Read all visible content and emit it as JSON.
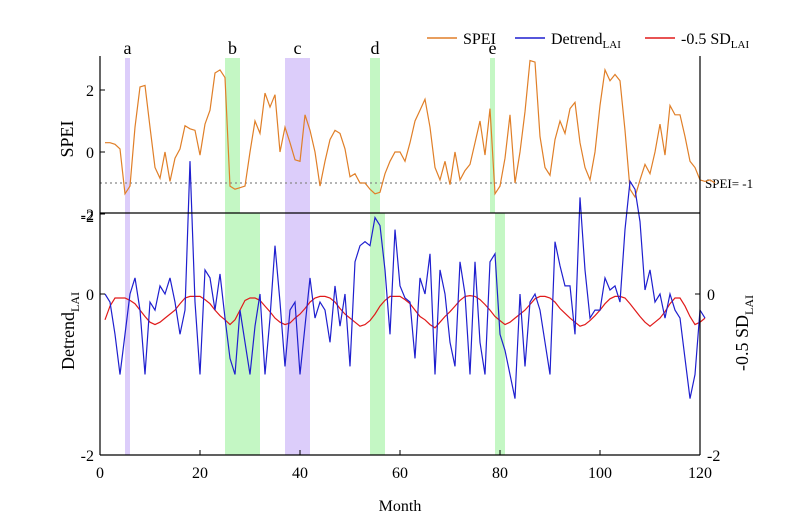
{
  "colors": {
    "spei": "#e07f28",
    "detrend": "#1f1fcf",
    "sd": "#e01a1a",
    "purple_band": "#dccdfa",
    "green_band": "#c4f7c4",
    "threshold": "#888888"
  },
  "legend": [
    {
      "key": "spei",
      "main": "SPEI",
      "sub": ""
    },
    {
      "key": "detrend",
      "main": "Detrend",
      "sub": "LAI"
    },
    {
      "key": "sd",
      "main": "-0.5 SD",
      "sub": "LAI"
    }
  ],
  "chart_data": {
    "type": "line",
    "xlabel": "Month",
    "x_range": [
      0,
      120
    ],
    "x_ticks": [
      0,
      20,
      40,
      60,
      80,
      100,
      120
    ],
    "top_panel": {
      "ylabel": "SPEI",
      "ylim": [
        -2,
        3
      ],
      "y_ticks": [
        -2,
        0,
        2
      ],
      "threshold": {
        "value": -1,
        "label": "SPEI= -1"
      },
      "events": [
        {
          "label": "a",
          "start": 5,
          "end": 6,
          "type": "purple"
        },
        {
          "label": "b",
          "start": 25,
          "end": 28,
          "type": "green"
        },
        {
          "label": "c",
          "start": 37,
          "end": 42,
          "type": "purple"
        },
        {
          "label": "d",
          "start": 54,
          "end": 56,
          "type": "green"
        },
        {
          "label": "e",
          "start": 78,
          "end": 79,
          "type": "green"
        }
      ],
      "series": [
        {
          "name": "SPEI",
          "key": "spei",
          "values": [
            0.3,
            0.3,
            0.25,
            0.1,
            -1.35,
            -1.1,
            0.8,
            2.1,
            2.15,
            0.8,
            -0.5,
            -0.85,
            0.0,
            -0.95,
            -0.2,
            0.1,
            0.85,
            0.75,
            0.7,
            -0.1,
            0.9,
            1.35,
            2.55,
            2.65,
            2.4,
            -1.1,
            -1.2,
            -1.15,
            -1.1,
            0.0,
            1.0,
            0.6,
            1.9,
            1.45,
            1.85,
            0.0,
            0.8,
            0.3,
            -0.25,
            -0.3,
            1.2,
            0.7,
            0.0,
            -1.1,
            -0.3,
            0.4,
            0.7,
            0.6,
            0.1,
            -0.8,
            -0.7,
            -1.0,
            -1.0,
            -1.2,
            -1.35,
            -1.3,
            -0.7,
            -0.3,
            0.0,
            0.0,
            -0.3,
            0.3,
            1.0,
            1.35,
            1.7,
            0.8,
            -0.5,
            -0.9,
            -0.3,
            -1.05,
            0.0,
            -0.9,
            -0.6,
            -0.4,
            0.3,
            1.0,
            -0.1,
            1.4,
            -1.35,
            -1.1,
            -0.2,
            1.2,
            -1.0,
            0.0,
            1.3,
            2.95,
            2.9,
            0.5,
            -0.5,
            -0.75,
            0.4,
            1.0,
            0.6,
            1.4,
            1.6,
            0.3,
            -0.5,
            -0.9,
            0.0,
            1.5,
            2.65,
            2.3,
            2.5,
            2.3,
            0.7,
            -1.2,
            -1.45,
            -0.9,
            -0.4,
            -0.7,
            0.0,
            0.9,
            -0.1,
            1.5,
            1.2,
            1.2,
            0.5,
            -0.3,
            -0.5,
            -0.9,
            -0.95,
            -0.9,
            -1.0
          ]
        }
      ]
    },
    "bottom_panel": {
      "ylabel_main": "Detrend",
      "ylabel_sub": "LAI",
      "right_ylabel_main": "-0.5 SD",
      "right_ylabel_sub": "LAI",
      "ylim": [
        -2,
        2
      ],
      "y_ticks_left": [
        -2,
        0
      ],
      "y_ticks_left_top": "-2",
      "y_ticks_right": [
        -2,
        0
      ],
      "events": [
        {
          "start": 5,
          "end": 6,
          "type": "purple"
        },
        {
          "start": 25,
          "end": 32,
          "type": "green"
        },
        {
          "start": 37,
          "end": 42,
          "type": "purple"
        },
        {
          "start": 54,
          "end": 57,
          "type": "green"
        },
        {
          "start": 79,
          "end": 81,
          "type": "green"
        }
      ],
      "series": [
        {
          "name": "Detrend LAI",
          "key": "detrend",
          "values": [
            0.0,
            -0.1,
            -0.5,
            -1.0,
            -0.5,
            0.0,
            0.2,
            -0.2,
            -1.0,
            -0.1,
            -0.2,
            0.1,
            0.0,
            0.2,
            -0.1,
            -0.5,
            -0.2,
            1.65,
            -0.1,
            -1.0,
            0.3,
            0.2,
            -0.2,
            0.25,
            -0.3,
            -0.8,
            -1.0,
            -0.2,
            -0.6,
            -1.0,
            -0.4,
            0.0,
            -1.0,
            -0.3,
            0.6,
            -0.1,
            -0.9,
            -0.2,
            -0.1,
            -1.0,
            -0.4,
            0.2,
            -0.3,
            -0.1,
            -0.2,
            -0.6,
            0.1,
            -0.4,
            0.0,
            -0.9,
            0.4,
            0.6,
            0.65,
            0.6,
            0.95,
            0.85,
            0.3,
            -0.5,
            0.8,
            0.1,
            -0.05,
            -0.1,
            -0.8,
            0.2,
            0.0,
            0.5,
            -1.0,
            0.3,
            0.0,
            -0.6,
            -0.9,
            0.4,
            0.0,
            -1.0,
            0.4,
            -0.6,
            -1.0,
            0.4,
            0.5,
            -0.5,
            -0.7,
            -1.0,
            -1.3,
            0.0,
            -0.9,
            -0.1,
            0.0,
            -0.2,
            -0.6,
            -1.0,
            0.65,
            0.35,
            0.1,
            0.1,
            -0.5,
            1.2,
            0.3,
            -0.3,
            -0.2,
            -0.2,
            0.2,
            0.05,
            0.1,
            -0.1,
            0.8,
            1.4,
            1.3,
            0.9,
            0.05,
            0.3,
            -0.1,
            0.0,
            -0.3,
            0.0,
            -0.2,
            -0.3,
            -0.8,
            -1.3,
            -1.0,
            -0.2,
            -0.3
          ]
        },
        {
          "name": "-0.5 SD LAI",
          "key": "sd",
          "values": [
            -0.32,
            -0.15,
            -0.05,
            -0.05,
            -0.05,
            -0.08,
            -0.12,
            -0.2,
            -0.28,
            -0.35,
            -0.38,
            -0.35,
            -0.3,
            -0.25,
            -0.2,
            -0.12,
            -0.05,
            -0.03,
            -0.03,
            -0.03,
            -0.07,
            -0.12,
            -0.2,
            -0.27,
            -0.32,
            -0.38,
            -0.32,
            -0.2,
            -0.08,
            -0.05,
            -0.05,
            -0.08,
            -0.15,
            -0.22,
            -0.3,
            -0.35,
            -0.38,
            -0.36,
            -0.3,
            -0.25,
            -0.18,
            -0.1,
            -0.05,
            -0.03,
            -0.03,
            -0.05,
            -0.1,
            -0.18,
            -0.25,
            -0.3,
            -0.35,
            -0.4,
            -0.38,
            -0.33,
            -0.25,
            -0.15,
            -0.08,
            -0.03,
            -0.03,
            -0.03,
            -0.07,
            -0.12,
            -0.2,
            -0.28,
            -0.32,
            -0.38,
            -0.42,
            -0.35,
            -0.28,
            -0.22,
            -0.15,
            -0.08,
            -0.03,
            -0.02,
            -0.03,
            -0.07,
            -0.13,
            -0.2,
            -0.28,
            -0.33,
            -0.38,
            -0.35,
            -0.3,
            -0.25,
            -0.2,
            -0.13,
            -0.06,
            -0.03,
            -0.03,
            -0.05,
            -0.1,
            -0.18,
            -0.24,
            -0.3,
            -0.35,
            -0.4,
            -0.38,
            -0.33,
            -0.27,
            -0.2,
            -0.12,
            -0.06,
            -0.03,
            -0.03,
            -0.05,
            -0.12,
            -0.2,
            -0.28,
            -0.35,
            -0.4,
            -0.35,
            -0.3,
            -0.22,
            -0.12,
            -0.05,
            -0.05,
            -0.15,
            -0.28,
            -0.38,
            -0.35,
            -0.3
          ]
        }
      ]
    }
  }
}
